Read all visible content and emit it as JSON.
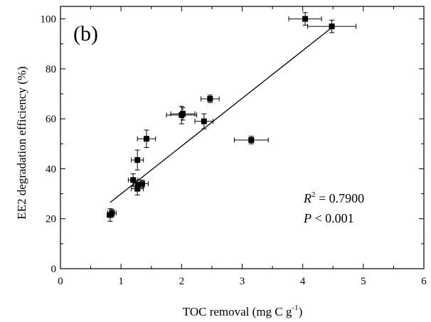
{
  "chart_data": {
    "type": "scatter",
    "panel_label": "(b)",
    "xlabel_main": "TOC removal (mg C g",
    "xlabel_sup": "-1",
    "xlabel_close": ")",
    "ylabel": "EE2 degradation efficiency (%)",
    "xlim": [
      0,
      6
    ],
    "ylim": [
      0,
      105
    ],
    "x_ticks": [
      0,
      1,
      2,
      3,
      4,
      5,
      6
    ],
    "y_ticks": [
      0,
      20,
      40,
      60,
      80,
      100
    ],
    "x_tick_labels": [
      "0",
      "1",
      "2",
      "3",
      "4",
      "5",
      "6"
    ],
    "y_tick_labels": [
      "0",
      "20",
      "40",
      "60",
      "80",
      "100"
    ],
    "grid": false,
    "points": [
      {
        "x": 0.82,
        "y": 21.5,
        "xerr": 0.05,
        "yerr": 2.5
      },
      {
        "x": 0.85,
        "y": 22.3,
        "xerr": 0.07,
        "yerr": 1.5
      },
      {
        "x": 1.2,
        "y": 35.5,
        "xerr": 0.08,
        "yerr": 2.5
      },
      {
        "x": 1.27,
        "y": 32.0,
        "xerr": 0.1,
        "yerr": 2.5
      },
      {
        "x": 1.28,
        "y": 33.5,
        "xerr": 0.08,
        "yerr": 2.0
      },
      {
        "x": 1.27,
        "y": 43.5,
        "xerr": 0.1,
        "yerr": 4.0
      },
      {
        "x": 1.35,
        "y": 34.0,
        "xerr": 0.1,
        "yerr": 1.5
      },
      {
        "x": 1.42,
        "y": 52.0,
        "xerr": 0.15,
        "yerr": 3.5
      },
      {
        "x": 2.0,
        "y": 61.5,
        "xerr": 0.25,
        "yerr": 3.5
      },
      {
        "x": 2.02,
        "y": 62.0,
        "xerr": 0.2,
        "yerr": 2.5
      },
      {
        "x": 2.37,
        "y": 59.0,
        "xerr": 0.15,
        "yerr": 3.0
      },
      {
        "x": 2.47,
        "y": 68.0,
        "xerr": 0.15,
        "yerr": 1.5
      },
      {
        "x": 3.15,
        "y": 51.5,
        "xerr": 0.28,
        "yerr": 1.5
      },
      {
        "x": 4.04,
        "y": 100.0,
        "xerr": 0.27,
        "yerr": 2.5
      },
      {
        "x": 4.48,
        "y": 97.0,
        "xerr": 0.4,
        "yerr": 2.5
      }
    ],
    "fit_line": {
      "x": [
        0.82,
        4.48
      ],
      "y": [
        26.5,
        96.5
      ]
    },
    "annotation": {
      "r2_var": "R",
      "r2_sup": "2",
      "r2_rest": " = 0.7900",
      "p_var": "P",
      "p_rest": " < 0.001"
    },
    "colors": {
      "marker": "#000000",
      "line": "#000000"
    }
  }
}
